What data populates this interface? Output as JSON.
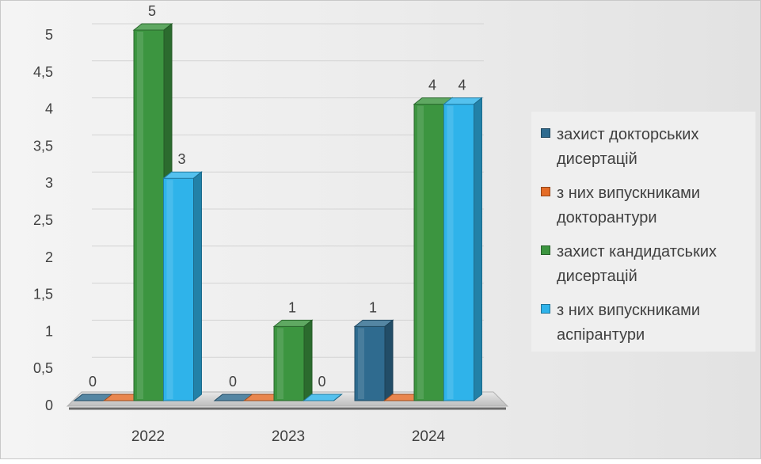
{
  "chart_data": {
    "type": "bar",
    "categories": [
      "2022",
      "2023",
      "2024"
    ],
    "series": [
      {
        "name": "захист докторських дисертацій",
        "values": [
          0,
          0,
          1
        ],
        "color": "#2f6b8f"
      },
      {
        "name": "з них випускниками докторантури",
        "values": [
          0,
          0,
          0
        ],
        "color": "#e46c27"
      },
      {
        "name": "захист кандидатських дисертацій",
        "values": [
          5,
          1,
          4
        ],
        "color": "#3c9540"
      },
      {
        "name": "з них випускниками аспірантури",
        "values": [
          3,
          0,
          4
        ],
        "color": "#2fb3ea"
      }
    ],
    "data_labels": [
      [
        "0",
        "",
        "5",
        "3"
      ],
      [
        "0",
        "",
        "1",
        "0"
      ],
      [
        "1",
        "",
        "4",
        "4"
      ]
    ],
    "y_ticks": [
      "0",
      "0,5",
      "1",
      "1,5",
      "2",
      "2,5",
      "3",
      "3,5",
      "4",
      "4,5",
      "5"
    ],
    "ylim": [
      0,
      5
    ],
    "grid": true,
    "legend_position": "right",
    "title": "",
    "xlabel": "",
    "ylabel": ""
  }
}
